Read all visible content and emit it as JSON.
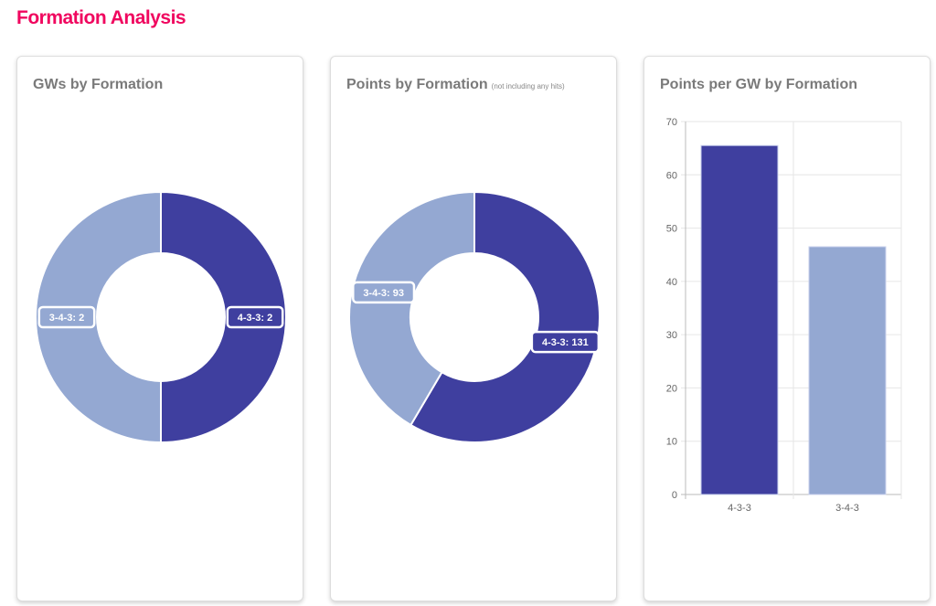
{
  "page_title": "Formation Analysis",
  "colors": {
    "4-3-3": "#3f3f9f",
    "3-4-3": "#94a8d2",
    "title": "#f0075f"
  },
  "chart_data": [
    {
      "type": "pie",
      "donut": true,
      "title": "GWs by Formation",
      "categories": [
        "4-3-3",
        "3-4-3"
      ],
      "values": [
        2,
        2
      ],
      "labels": [
        "4-3-3: 2",
        "3-4-3: 2"
      ]
    },
    {
      "type": "pie",
      "donut": true,
      "title": "Points by Formation",
      "subtitle": "(not including any hits)",
      "categories": [
        "4-3-3",
        "3-4-3"
      ],
      "values": [
        131,
        93
      ],
      "labels": [
        "4-3-3: 131",
        "3-4-3: 93"
      ]
    },
    {
      "type": "bar",
      "title": "Points per GW by Formation",
      "categories": [
        "4-3-3",
        "3-4-3"
      ],
      "values": [
        65.5,
        46.5
      ],
      "ylim": [
        0,
        70
      ],
      "yticks": [
        0,
        10,
        20,
        30,
        40,
        50,
        60,
        70
      ],
      "grid": true
    }
  ]
}
